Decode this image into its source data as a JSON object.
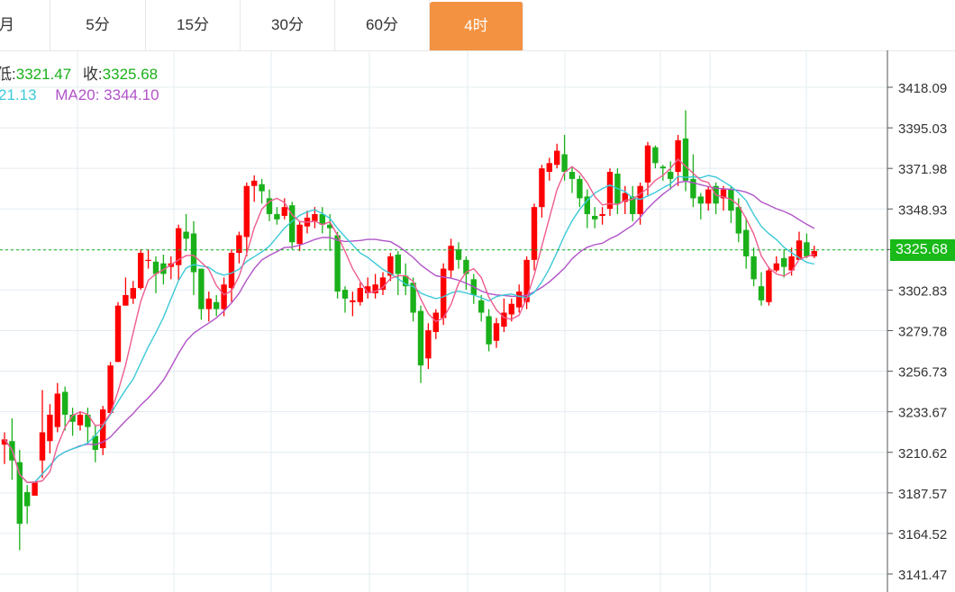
{
  "tabs": [
    {
      "label": "月",
      "active": false
    },
    {
      "label": "5分",
      "active": false
    },
    {
      "label": "15分",
      "active": false
    },
    {
      "label": "30分",
      "active": false
    },
    {
      "label": "60分",
      "active": false
    },
    {
      "label": "4时",
      "active": true
    }
  ],
  "legend": {
    "low_label": "低:",
    "low_value": "3321.47",
    "close_label": "收:",
    "close_value": "3325.68",
    "ma10_value": "21.13",
    "ma20_label": "MA20:",
    "ma20_value": "3344.10"
  },
  "colors": {
    "up": "#ff0000",
    "down": "#1ab01a",
    "ma5": "#ee5b8f",
    "ma10": "#3cc9d8",
    "ma20": "#b153c8",
    "active_tab": "#f39241",
    "grid": "#e3ecf2"
  },
  "chart_data": {
    "type": "candlestick",
    "y_ticks": [
      "3418.09",
      "3395.03",
      "3371.98",
      "3348.93",
      "3325.88",
      "3302.83",
      "3279.78",
      "3256.73",
      "3233.67",
      "3210.62",
      "3187.57",
      "3164.52",
      "3141.47"
    ],
    "ylim": [
      3141.47,
      3418.09
    ],
    "last_price": "3325.68",
    "candles": [
      [
        3215,
        3218,
        3204,
        3222
      ],
      [
        3217,
        3206,
        3195,
        3230
      ],
      [
        3205,
        3170,
        3155,
        3212
      ],
      [
        3188,
        3180,
        3170,
        3192
      ],
      [
        3186,
        3194,
        3186,
        3194
      ],
      [
        3206,
        3222,
        3196,
        3246
      ],
      [
        3217,
        3232,
        3210,
        3238
      ],
      [
        3225,
        3244,
        3222,
        3250
      ],
      [
        3245,
        3232,
        3223,
        3248
      ],
      [
        3232,
        3228,
        3220,
        3236
      ],
      [
        3226,
        3232,
        3223,
        3234
      ],
      [
        3232,
        3225,
        3215,
        3236
      ],
      [
        3220,
        3212,
        3205,
        3226
      ],
      [
        3213,
        3235,
        3209,
        3237
      ],
      [
        3233,
        3260,
        3233,
        3262
      ],
      [
        3262,
        3294,
        3262,
        3296
      ],
      [
        3294,
        3300,
        3294,
        3310
      ],
      [
        3298,
        3304,
        3295,
        3308
      ],
      [
        3304,
        3324,
        3303,
        3326
      ],
      [
        3320,
        3320,
        3315,
        3326
      ],
      [
        3319,
        3312,
        3301,
        3322
      ],
      [
        3318,
        3312,
        3306,
        3323
      ],
      [
        3316,
        3318,
        3309,
        3322
      ],
      [
        3317,
        3338,
        3308,
        3340
      ],
      [
        3336,
        3332,
        3325,
        3346
      ],
      [
        3335,
        3313,
        3300,
        3342
      ],
      [
        3315,
        3292,
        3286,
        3315
      ],
      [
        3292,
        3298,
        3285,
        3302
      ],
      [
        3296,
        3292,
        3288,
        3300
      ],
      [
        3292,
        3306,
        3288,
        3310
      ],
      [
        3304,
        3324,
        3296,
        3326
      ],
      [
        3324,
        3334,
        3318,
        3336
      ],
      [
        3333,
        3362,
        3322,
        3364
      ],
      [
        3362,
        3365,
        3353,
        3368
      ],
      [
        3363,
        3359,
        3352,
        3366
      ],
      [
        3355,
        3346,
        3342,
        3360
      ],
      [
        3346,
        3343,
        3340,
        3350
      ],
      [
        3345,
        3350,
        3343,
        3355
      ],
      [
        3351,
        3330,
        3326,
        3353
      ],
      [
        3329,
        3340,
        3325,
        3342
      ],
      [
        3339,
        3344,
        3335,
        3348
      ],
      [
        3342,
        3346,
        3338,
        3350
      ],
      [
        3346,
        3340,
        3335,
        3350
      ],
      [
        3340,
        3338,
        3325,
        3346
      ],
      [
        3334,
        3302,
        3298,
        3336
      ],
      [
        3303,
        3298,
        3290,
        3305
      ],
      [
        3296,
        3297,
        3288,
        3302
      ],
      [
        3296,
        3304,
        3294,
        3307
      ],
      [
        3301,
        3305,
        3298,
        3310
      ],
      [
        3301,
        3306,
        3298,
        3312
      ],
      [
        3303,
        3310,
        3300,
        3313
      ],
      [
        3311,
        3322,
        3308,
        3324
      ],
      [
        3323,
        3312,
        3300,
        3325
      ],
      [
        3311,
        3305,
        3300,
        3318
      ],
      [
        3307,
        3290,
        3285,
        3310
      ],
      [
        3291,
        3260,
        3250,
        3294
      ],
      [
        3264,
        3280,
        3258,
        3284
      ],
      [
        3279,
        3290,
        3275,
        3292
      ],
      [
        3287,
        3315,
        3283,
        3318
      ],
      [
        3314,
        3328,
        3310,
        3332
      ],
      [
        3326,
        3320,
        3315,
        3330
      ],
      [
        3320,
        3312,
        3303,
        3322
      ],
      [
        3309,
        3300,
        3295,
        3312
      ],
      [
        3297,
        3290,
        3285,
        3300
      ],
      [
        3288,
        3272,
        3268,
        3292
      ],
      [
        3274,
        3284,
        3270,
        3287
      ],
      [
        3282,
        3290,
        3279,
        3298
      ],
      [
        3289,
        3295,
        3285,
        3298
      ],
      [
        3293,
        3302,
        3290,
        3306
      ],
      [
        3296,
        3320,
        3292,
        3322
      ],
      [
        3320,
        3350,
        3314,
        3352
      ],
      [
        3350,
        3372,
        3344,
        3374
      ],
      [
        3370,
        3375,
        3365,
        3378
      ],
      [
        3374,
        3382,
        3372,
        3386
      ],
      [
        3380,
        3370,
        3365,
        3391
      ],
      [
        3370,
        3366,
        3358,
        3373
      ],
      [
        3366,
        3355,
        3350,
        3368
      ],
      [
        3356,
        3346,
        3338,
        3360
      ],
      [
        3345,
        3343,
        3338,
        3350
      ],
      [
        3345,
        3346,
        3340,
        3350
      ],
      [
        3349,
        3370,
        3345,
        3372
      ],
      [
        3369,
        3352,
        3346,
        3372
      ],
      [
        3353,
        3358,
        3346,
        3362
      ],
      [
        3356,
        3346,
        3342,
        3362
      ],
      [
        3346,
        3362,
        3340,
        3364
      ],
      [
        3364,
        3385,
        3356,
        3387
      ],
      [
        3384,
        3375,
        3372,
        3385
      ],
      [
        3373,
        3372,
        3365,
        3374
      ],
      [
        3370,
        3366,
        3360,
        3376
      ],
      [
        3370,
        3388,
        3362,
        3391
      ],
      [
        3389,
        3365,
        3359,
        3405
      ],
      [
        3366,
        3355,
        3350,
        3380
      ],
      [
        3356,
        3352,
        3343,
        3358
      ],
      [
        3352,
        3360,
        3348,
        3362
      ],
      [
        3362,
        3352,
        3346,
        3364
      ],
      [
        3355,
        3360,
        3348,
        3362
      ],
      [
        3360,
        3348,
        3341,
        3362
      ],
      [
        3350,
        3335,
        3330,
        3355
      ],
      [
        3337,
        3322,
        3315,
        3344
      ],
      [
        3322,
        3309,
        3305,
        3327
      ],
      [
        3305,
        3297,
        3294,
        3313
      ],
      [
        3296,
        3314,
        3294,
        3316
      ],
      [
        3314,
        3318,
        3313,
        3322
      ],
      [
        3321,
        3316,
        3310,
        3326
      ],
      [
        3314,
        3322,
        3311,
        3327
      ],
      [
        3320,
        3331,
        3320,
        3336
      ],
      [
        3330,
        3322,
        3321,
        3335
      ],
      [
        3322,
        3325,
        3321,
        3328
      ]
    ]
  }
}
